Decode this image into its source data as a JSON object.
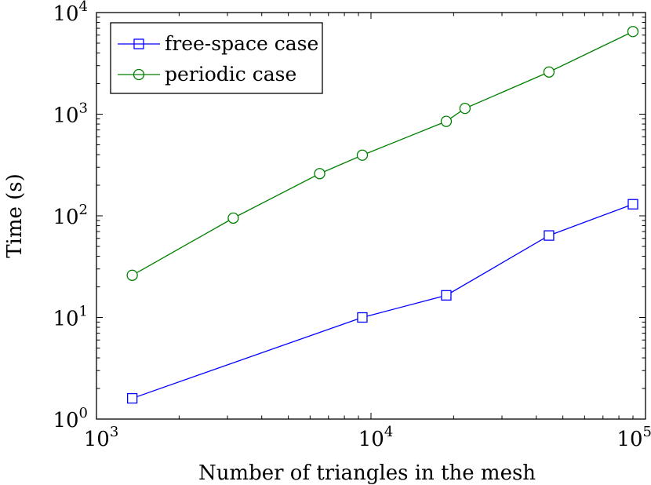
{
  "chart_data": {
    "type": "line",
    "xscale": "log",
    "yscale": "log",
    "xlim": [
      1000,
      100000
    ],
    "ylim": [
      1,
      10000
    ],
    "xlabel": "Number of triangles in the mesh",
    "ylabel": "Time (s)",
    "grid": false,
    "legend_position": "top-left",
    "x_ticks": [
      {
        "base": "10",
        "exp": "3",
        "value": 1000
      },
      {
        "base": "10",
        "exp": "4",
        "value": 10000
      },
      {
        "base": "10",
        "exp": "5",
        "value": 100000
      }
    ],
    "y_ticks": [
      {
        "base": "10",
        "exp": "0",
        "value": 1
      },
      {
        "base": "10",
        "exp": "1",
        "value": 10
      },
      {
        "base": "10",
        "exp": "2",
        "value": 100
      },
      {
        "base": "10",
        "exp": "3",
        "value": 1000
      },
      {
        "base": "10",
        "exp": "4",
        "value": 10000
      }
    ],
    "series": [
      {
        "name": "free-space case",
        "color": "#0000ff",
        "marker": "square",
        "x": [
          1350,
          9300,
          18800,
          44500,
          90000
        ],
        "y": [
          1.6,
          10,
          16.5,
          64,
          130
        ]
      },
      {
        "name": "periodic case",
        "color": "#008000",
        "marker": "circle",
        "x": [
          1350,
          3150,
          6500,
          9300,
          18800,
          22000,
          44500,
          90000
        ],
        "y": [
          26,
          95,
          260,
          395,
          850,
          1140,
          2600,
          6500
        ]
      }
    ]
  }
}
